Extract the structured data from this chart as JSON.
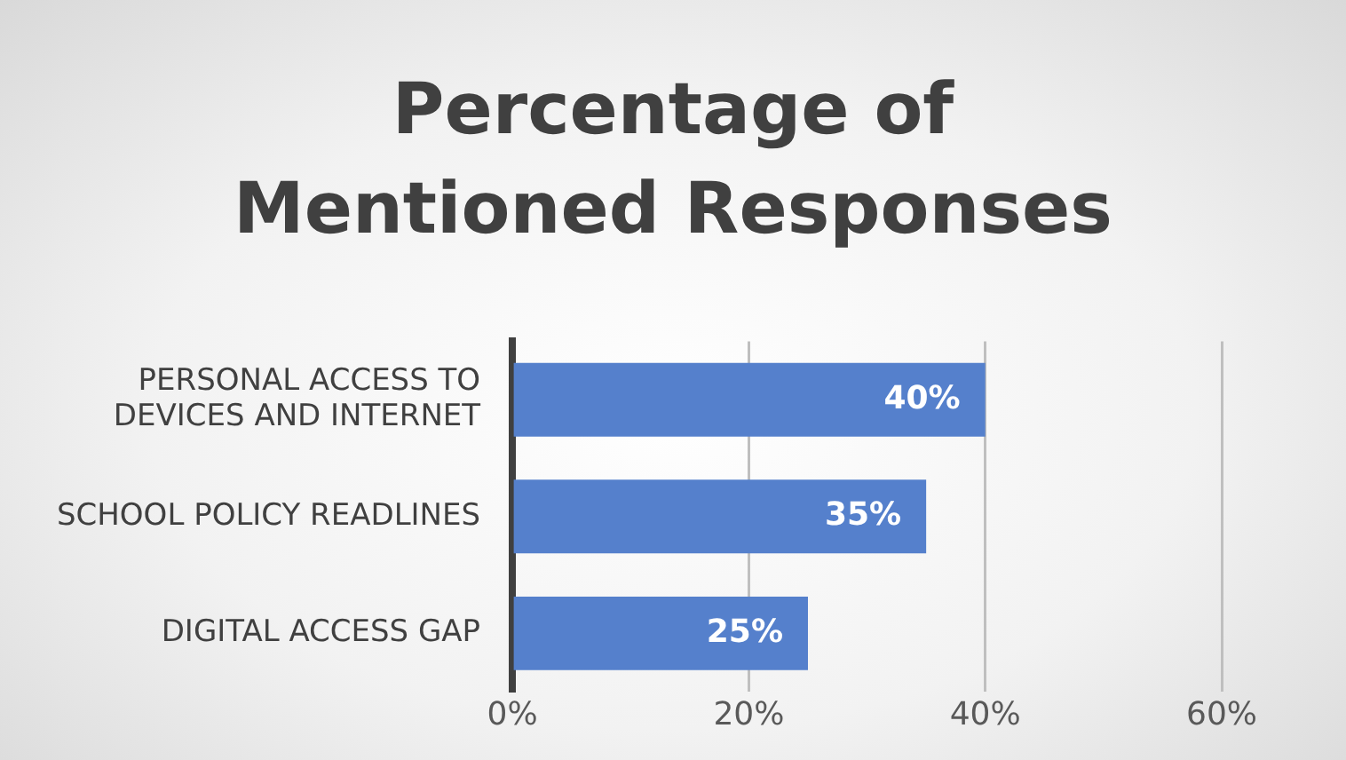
{
  "chart_data": {
    "type": "bar",
    "orientation": "horizontal",
    "title": "Percentage of Mentioned Responses",
    "categories": [
      "PERSONAL ACCESS TO DEVICES AND INTERNET",
      "SCHOOL POLICY READLINES",
      "DIGITAL ACCESS GAP"
    ],
    "values": [
      40,
      35,
      25
    ],
    "color": "#5580cc",
    "value_labels": [
      "40%",
      "35%",
      "25%"
    ],
    "xlim": [
      0,
      60
    ],
    "xticks": [
      {
        "value": 0,
        "label": "0%"
      },
      {
        "value": 20,
        "label": "20%"
      },
      {
        "value": 40,
        "label": "40%"
      },
      {
        "value": 60,
        "label": "60%"
      }
    ],
    "grid": "x",
    "legend": false
  }
}
